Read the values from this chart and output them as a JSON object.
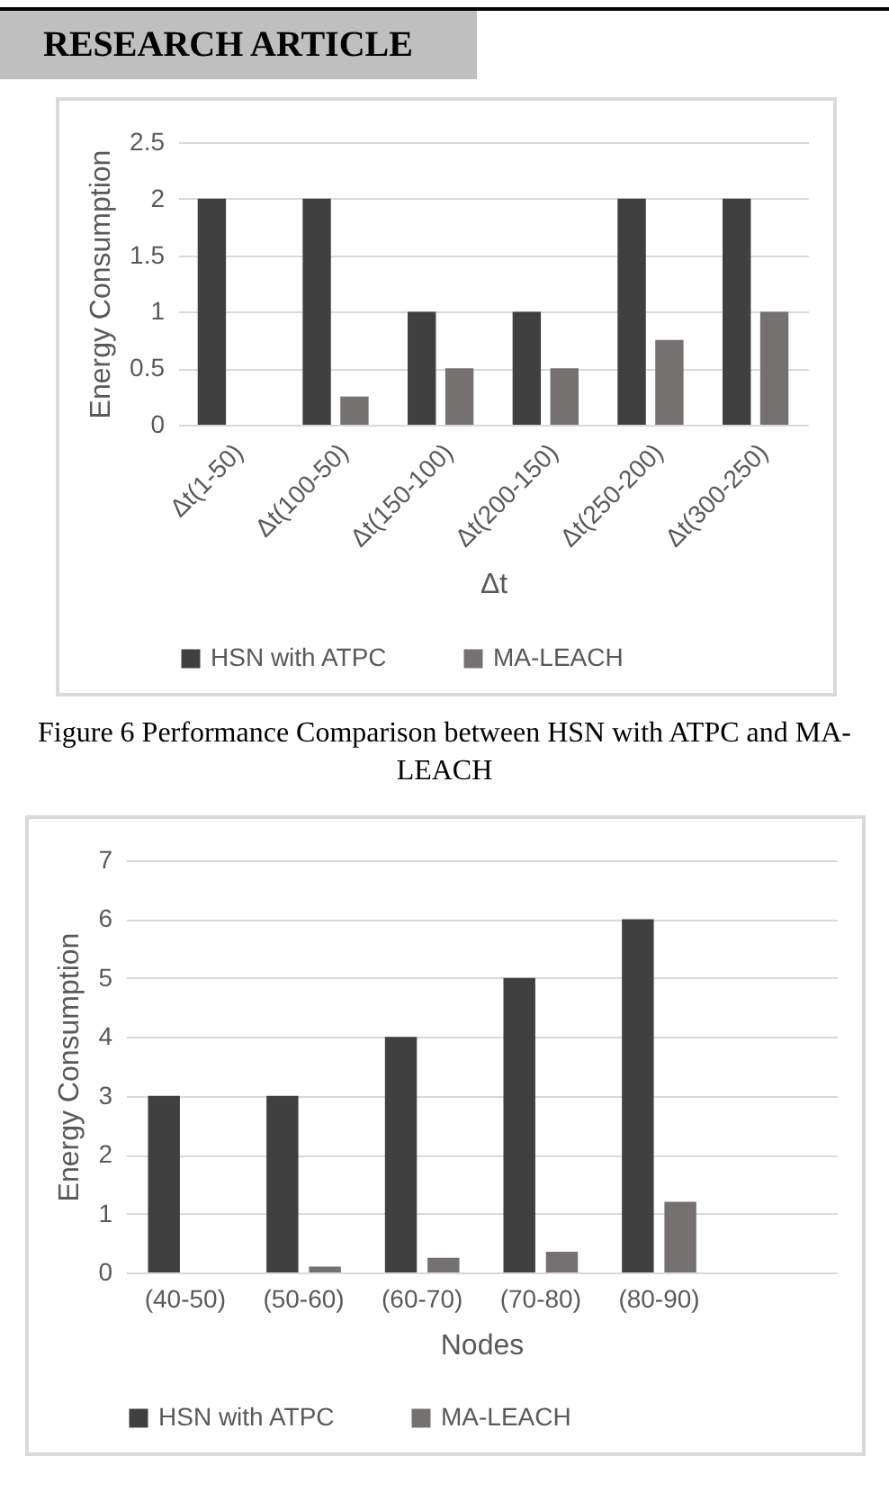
{
  "chart_data": [
    {
      "type": "bar",
      "annotations": [
        "RESEARCH ARTICLE",
        "Figure 6 Performance Comparison between HSN with ATPC and MA-LEACH"
      ],
      "xlabel": "Δt",
      "ylabel": "Energy Consumption",
      "categories": [
        "Δt(1-50)",
        "Δt(100-50)",
        "Δt(150-100)",
        "Δt(200-150)",
        "Δt(250-200)",
        "Δt(300-250)"
      ],
      "series": [
        {
          "name": "HSN with ATPC",
          "color": "#404040",
          "values": [
            2,
            2,
            1,
            1,
            2,
            2
          ]
        },
        {
          "name": "MA-LEACH",
          "color": "#767171",
          "values": [
            0,
            0.25,
            0.5,
            0.5,
            0.75,
            1
          ]
        }
      ],
      "ylim": [
        0,
        2.5
      ],
      "yticks": [
        0,
        0.5,
        1,
        1.5,
        2,
        2.5
      ],
      "grid": "y",
      "legend": "bottom"
    },
    {
      "type": "bar",
      "xlabel": "Nodes",
      "ylabel": "Energy Consumption",
      "categories": [
        "(40-50)",
        "(50-60)",
        "(60-70)",
        "(70-80)",
        "(80-90)",
        null
      ],
      "series": [
        {
          "name": "HSN with ATPC",
          "color": "#404040",
          "values": [
            3,
            3,
            4,
            5,
            6,
            null
          ]
        },
        {
          "name": "MA-LEACH",
          "color": "#767171",
          "values": [
            0,
            0.1,
            0.25,
            0.35,
            1.2,
            null
          ]
        }
      ],
      "ylim": [
        0,
        7
      ],
      "yticks": [
        0,
        1,
        2,
        3,
        4,
        5,
        6,
        7
      ],
      "grid": "y",
      "legend": "bottom"
    }
  ]
}
